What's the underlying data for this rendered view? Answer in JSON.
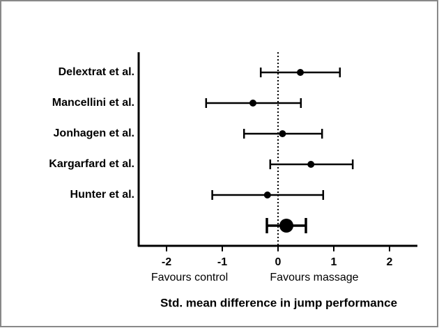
{
  "chart_data": {
    "type": "forest",
    "xlabel": "Std. mean difference in jump performance",
    "categories": [
      "Delextrat et al.",
      "Mancellini et al.",
      "Jonhagen et al.",
      "Kargarfard et al.",
      "Hunter et al.",
      null
    ],
    "values": [
      0.4,
      -0.45,
      0.08,
      0.59,
      -0.19,
      0.15
    ],
    "ci_lower": [
      -0.31,
      -1.29,
      -0.61,
      -0.14,
      -1.18,
      -0.2
    ],
    "ci_upper": [
      1.11,
      0.41,
      0.79,
      1.34,
      0.81,
      0.5
    ],
    "xlim": [
      -2.5,
      2.5
    ],
    "xticks": [
      -2,
      -1,
      0,
      1,
      2
    ],
    "reference_line": 0,
    "color": "#000000",
    "annotations": [
      "Favours control",
      "Favours massage"
    ]
  }
}
